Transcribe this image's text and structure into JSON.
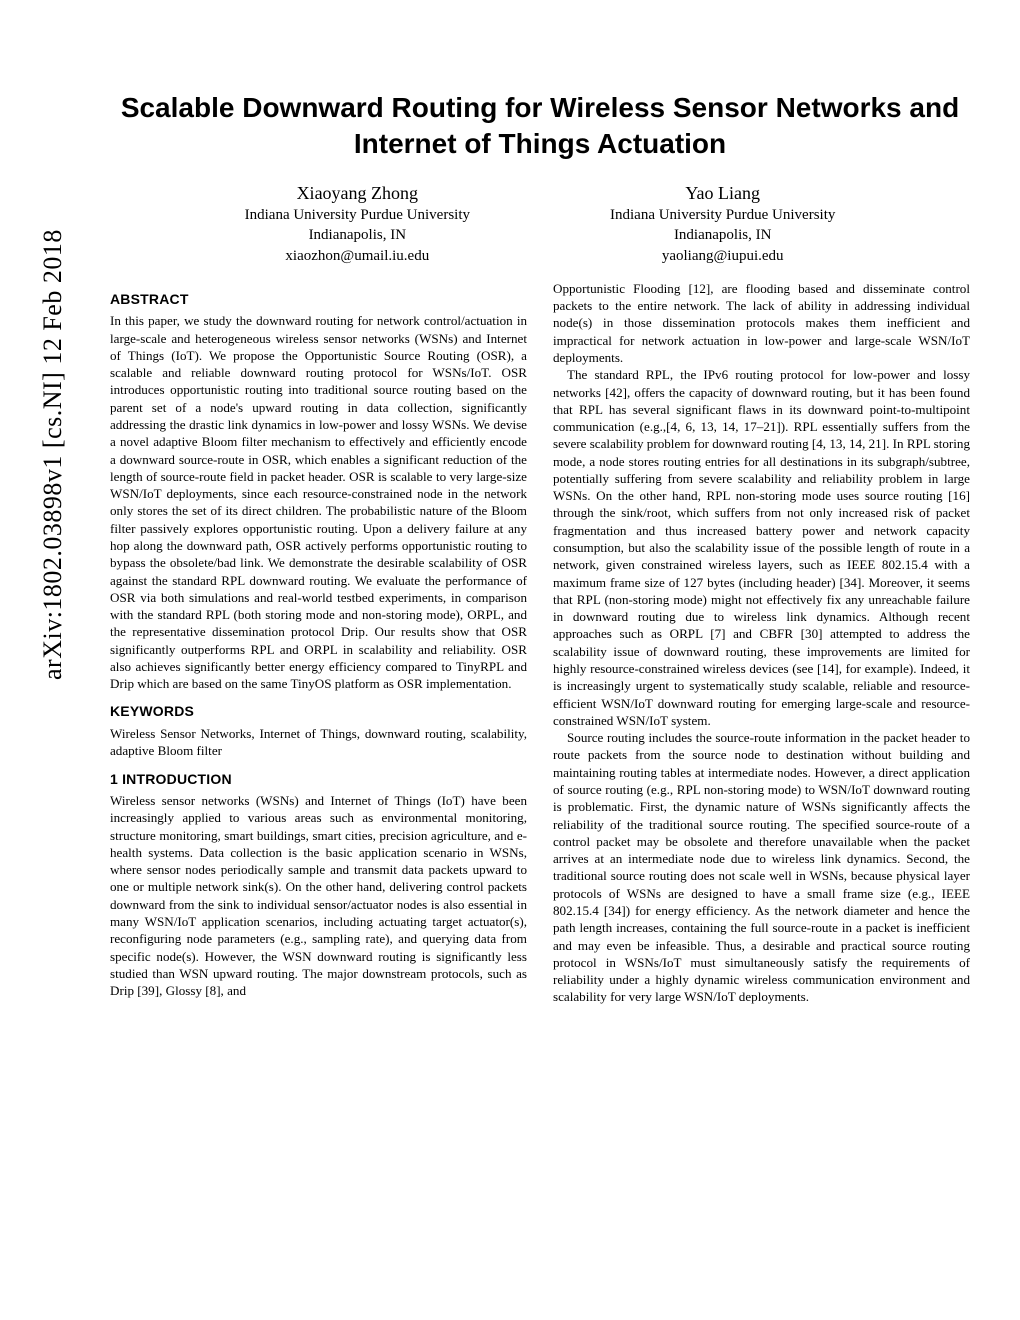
{
  "arxiv_stamp": "arXiv:1802.03898v1  [cs.NI]  12 Feb 2018",
  "title": "Scalable Downward Routing for Wireless Sensor Networks and Internet of Things Actuation",
  "authors": [
    {
      "name": "Xiaoyang Zhong",
      "affil": "Indiana University Purdue University",
      "loc": "Indianapolis, IN",
      "email": "xiaozhon@umail.iu.edu"
    },
    {
      "name": "Yao Liang",
      "affil": "Indiana University Purdue University",
      "loc": "Indianapolis, IN",
      "email": "yaoliang@iupui.edu"
    }
  ],
  "headings": {
    "abstract": "ABSTRACT",
    "keywords": "KEYWORDS",
    "intro": "1   INTRODUCTION"
  },
  "abstract": "In this paper, we study the downward routing for network control/actuation in large-scale and heterogeneous wireless sensor networks (WSNs) and Internet of Things (IoT). We propose the Opportunistic Source Routing (OSR), a scalable and reliable downward routing protocol for WSNs/IoT. OSR introduces opportunistic routing into traditional source routing based on the parent set of a node's upward routing in data collection, significantly addressing the drastic link dynamics in low-power and lossy WSNs. We devise a novel adaptive Bloom filter mechanism to effectively and efficiently encode a downward source-route in OSR, which enables a significant reduction of the length of source-route field in packet header. OSR is scalable to very large-size WSN/IoT deployments, since each resource-constrained node in the network only stores the set of its direct children. The probabilistic nature of the Bloom filter passively explores opportunistic routing. Upon a delivery failure at any hop along the downward path, OSR actively performs opportunistic routing to bypass the obsolete/bad link. We demonstrate the desirable scalability of OSR against the standard RPL downward routing. We evaluate the performance of OSR via both simulations and real-world testbed experiments, in comparison with the standard RPL (both storing mode and non-storing mode), ORPL, and the representative dissemination protocol Drip. Our results show that OSR significantly outperforms RPL and ORPL in scalability and reliability. OSR also achieves significantly better energy efficiency compared to TinyRPL and Drip which are based on the same TinyOS platform as OSR implementation.",
  "keywords": "Wireless Sensor Networks, Internet of Things, downward routing, scalability, adaptive Bloom filter",
  "intro_p1": "Wireless sensor networks (WSNs) and Internet of Things (IoT) have been increasingly applied to various areas such as environmental monitoring, structure monitoring, smart buildings, smart cities, precision agriculture, and e-health systems. Data collection is the basic application scenario in WSNs, where sensor nodes periodically sample and transmit data packets upward to one or multiple network sink(s). On the other hand, delivering control packets downward from the sink to individual sensor/actuator nodes is also essential in many WSN/IoT application scenarios, including actuating target actuator(s), reconfiguring node parameters (e.g., sampling rate), and querying data from specific node(s). However, the WSN downward routing is significantly less studied than WSN upward routing. The major downstream protocols, such as Drip [39], Glossy [8], and",
  "col2_p1": "Opportunistic Flooding [12], are flooding based and disseminate control packets to the entire network. The lack of ability in addressing individual node(s) in those dissemination protocols makes them inefficient and impractical for network actuation in low-power and large-scale WSN/IoT deployments.",
  "col2_p2": "The standard RPL, the IPv6 routing protocol for low-power and lossy networks [42], offers the capacity of downward routing, but it has been found that RPL has several significant flaws in its downward point-to-multipoint communication (e.g.,[4, 6, 13, 14, 17–21]). RPL essentially suffers from the severe scalability problem for downward routing [4, 13, 14, 21]. In RPL storing mode, a node stores routing entries for all destinations in its subgraph/subtree, potentially suffering from severe scalability and reliability problem in large WSNs. On the other hand, RPL non-storing mode uses source routing [16] through the sink/root, which suffers from not only increased risk of packet fragmentation and thus increased battery power and network capacity consumption, but also the scalability issue of the possible length of route in a network, given constrained wireless layers, such as IEEE 802.15.4 with a maximum frame size of 127 bytes (including header) [34]. Moreover, it seems that RPL (non-storing mode) might not effectively fix any unreachable failure in downward routing due to wireless link dynamics. Although recent approaches such as ORPL [7] and CBFR [30] attempted to address the scalability issue of downward routing, these improvements are limited for highly resource-constrained wireless devices (see [14], for example). Indeed, it is increasingly urgent to systematically study scalable, reliable and resource-efficient WSN/IoT downward routing for emerging large-scale and resource-constrained WSN/IoT system.",
  "col2_p3": "Source routing includes the source-route information in the packet header to route packets from the source node to destination without building and maintaining routing tables at intermediate nodes. However, a direct application of source routing (e.g., RPL non-storing mode) to WSN/IoT downward routing is problematic. First, the dynamic nature of WSNs significantly affects the reliability of the traditional source routing. The specified source-route of a control packet may be obsolete and therefore unavailable when the packet arrives at an intermediate node due to wireless link dynamics. Second, the traditional source routing does not scale well in WSNs, because physical layer protocols of WSNs are designed to have a small frame size (e.g., IEEE 802.15.4 [34]) for energy efficiency. As the network diameter and hence the path length increases, containing the full source-route in a packet is inefficient and may even be infeasible. Thus, a desirable and practical source routing protocol in WSNs/IoT must simultaneously satisfy the requirements of reliability under a highly dynamic wireless communication environment and scalability for very large WSN/IoT deployments."
}
